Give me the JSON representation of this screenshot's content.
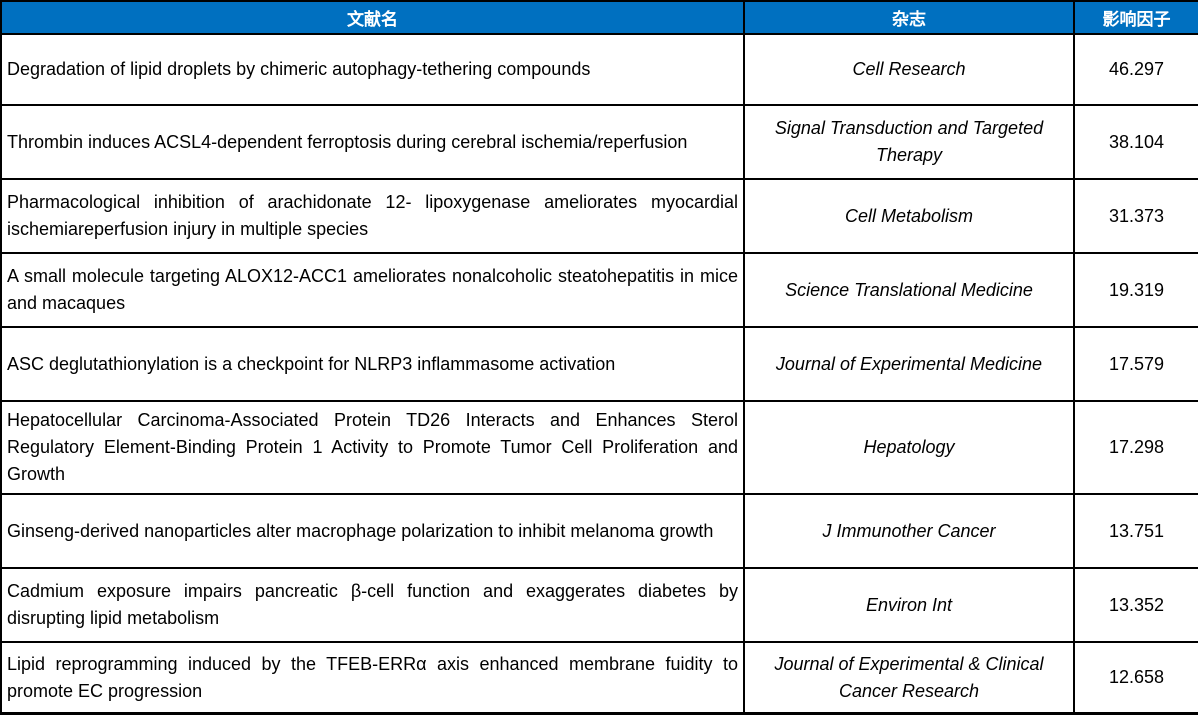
{
  "colors": {
    "header_background": "#0070C0",
    "header_text": "#FFFFFF",
    "border": "#000000",
    "body_text": "#000000",
    "row_background": "#FFFFFF"
  },
  "table": {
    "columns": [
      {
        "label": "文献名"
      },
      {
        "label": "杂志"
      },
      {
        "label": "影响因子"
      }
    ],
    "rows": [
      {
        "title": "Degradation of lipid droplets by chimeric autophagy-tethering compounds",
        "journal": "Cell Research",
        "impact_factor": "46.297"
      },
      {
        "title": "Thrombin induces ACSL4-dependent ferroptosis during cerebral ischemia/reperfusion",
        "journal": "Signal Transduction and Targeted Therapy",
        "impact_factor": "38.104"
      },
      {
        "title": "Pharmacological inhibition of arachidonate 12- lipoxygenase ameliorates myocardial ischemiareperfusion injury in multiple species",
        "journal": "Cell Metabolism",
        "impact_factor": "31.373"
      },
      {
        "title": "A small molecule targeting ALOX12-ACC1 ameliorates nonalcoholic steatohepatitis in mice and macaques",
        "journal": "Science Translational Medicine",
        "impact_factor": "19.319"
      },
      {
        "title": "ASC deglutathionylation is a checkpoint for NLRP3 inflammasome activation",
        "journal": "Journal of Experimental Medicine",
        "impact_factor": "17.579"
      },
      {
        "title": "Hepatocellular Carcinoma-Associated Protein TD26 Interacts and Enhances Sterol Regulatory Element-Binding Protein 1 Activity to Promote Tumor Cell Proliferation and Growth",
        "journal": "Hepatology",
        "impact_factor": "17.298"
      },
      {
        "title": "Ginseng-derived nanoparticles alter macrophage polarization to inhibit melanoma growth",
        "journal": "J Immunother Cancer",
        "impact_factor": "13.751"
      },
      {
        "title": "Cadmium exposure impairs pancreatic β-cell function and exaggerates diabetes by disrupting lipid metabolism",
        "journal": "Environ Int",
        "impact_factor": "13.352"
      },
      {
        "title": "Lipid reprogramming induced by the TFEB-ERRα axis enhanced membrane fuidity to promote EC progression",
        "journal": "Journal of Experimental & Clinical Cancer Research",
        "impact_factor": "12.658"
      }
    ]
  }
}
